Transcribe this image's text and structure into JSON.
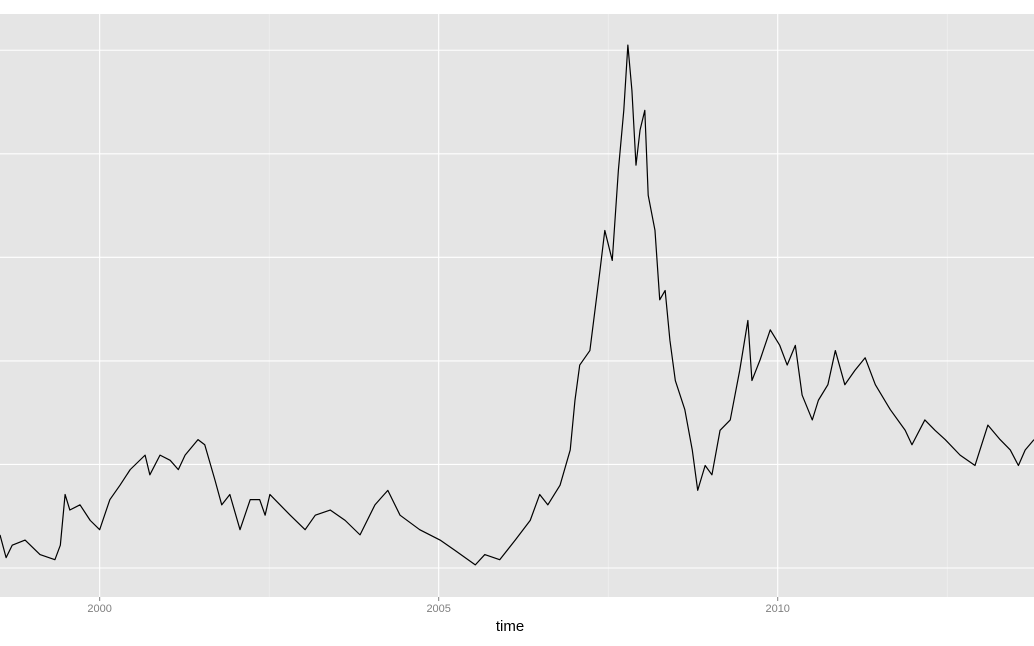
{
  "chart_data": {
    "type": "line",
    "x_label": "time",
    "x": [
      1998.53,
      1998.62,
      1998.71,
      1998.9,
      1999.12,
      1999.34,
      1999.42,
      1999.49,
      1999.56,
      1999.71,
      1999.86,
      2000.0,
      2000.15,
      2000.3,
      2000.45,
      2000.67,
      2000.74,
      2000.89,
      2001.04,
      2001.16,
      2001.26,
      2001.45,
      2001.55,
      2001.7,
      2001.8,
      2001.92,
      2002.07,
      2002.22,
      2002.36,
      2002.44,
      2002.51,
      2002.81,
      2003.03,
      2003.18,
      2003.4,
      2003.62,
      2003.84,
      2004.06,
      2004.25,
      2004.43,
      2004.72,
      2005.02,
      2005.24,
      2005.54,
      2005.68,
      2005.9,
      2006.13,
      2006.35,
      2006.49,
      2006.61,
      2006.79,
      2006.94,
      2007.01,
      2007.08,
      2007.23,
      2007.38,
      2007.45,
      2007.56,
      2007.65,
      2007.73,
      2007.79,
      2007.85,
      2007.91,
      2007.97,
      2008.04,
      2008.09,
      2008.19,
      2008.26,
      2008.34,
      2008.41,
      2008.49,
      2008.63,
      2008.74,
      2008.82,
      2008.93,
      2009.03,
      2009.15,
      2009.3,
      2009.44,
      2009.56,
      2009.62,
      2009.74,
      2009.89,
      2010.03,
      2010.14,
      2010.26,
      2010.36,
      2010.51,
      2010.6,
      2010.74,
      2010.85,
      2010.99,
      2011.14,
      2011.29,
      2011.44,
      2011.66,
      2011.88,
      2011.98,
      2012.17,
      2012.32,
      2012.47,
      2012.69,
      2012.91,
      2013.1,
      2013.28,
      2013.43,
      2013.55,
      2013.65,
      2013.78
    ],
    "values": [
      1.32,
      1.1,
      1.22,
      1.27,
      1.13,
      1.08,
      1.22,
      1.71,
      1.56,
      1.61,
      1.46,
      1.37,
      1.66,
      1.8,
      1.95,
      2.09,
      1.9,
      2.09,
      2.04,
      1.95,
      2.09,
      2.24,
      2.19,
      1.85,
      1.61,
      1.71,
      1.37,
      1.66,
      1.66,
      1.51,
      1.71,
      1.51,
      1.37,
      1.51,
      1.56,
      1.46,
      1.32,
      1.61,
      1.75,
      1.51,
      1.37,
      1.27,
      1.17,
      1.03,
      1.13,
      1.08,
      1.27,
      1.46,
      1.71,
      1.61,
      1.8,
      2.14,
      2.62,
      2.96,
      3.1,
      3.88,
      4.26,
      3.97,
      4.84,
      5.42,
      6.05,
      5.61,
      4.89,
      5.23,
      5.42,
      4.6,
      4.26,
      3.59,
      3.68,
      3.2,
      2.81,
      2.53,
      2.14,
      1.75,
      1.99,
      1.9,
      2.33,
      2.43,
      2.91,
      3.39,
      2.81,
      3.01,
      3.3,
      3.15,
      2.96,
      3.15,
      2.67,
      2.43,
      2.62,
      2.77,
      3.1,
      2.77,
      2.91,
      3.03,
      2.77,
      2.53,
      2.33,
      2.19,
      2.43,
      2.33,
      2.24,
      2.09,
      1.99,
      2.38,
      2.24,
      2.14,
      1.99,
      2.14,
      2.24
    ],
    "color": "#000000",
    "xlim": [
      1998.53,
      2013.78
    ],
    "xticks": [
      2000,
      2005,
      2010
    ],
    "xminorgrid": [
      2002.5,
      2007.5,
      2012.5
    ],
    "ylim": [
      0.72,
      6.35
    ],
    "ygridlines": [
      1,
      2,
      3,
      4,
      5,
      6
    ],
    "grid": true
  }
}
